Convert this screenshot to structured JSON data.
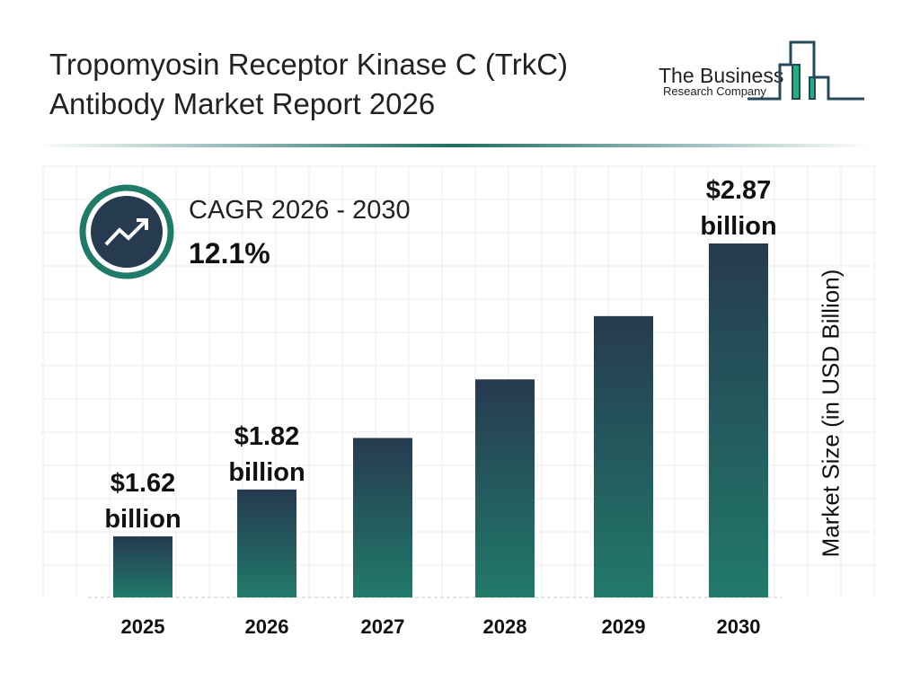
{
  "header": {
    "title_line1": "Tropomyosin Receptor Kinase C (TrkC)",
    "title_line2": "Antibody Market Report 2026"
  },
  "logo": {
    "line1": "The Business",
    "line2": "Research Company"
  },
  "cagr": {
    "label": "CAGR 2026 - 2030",
    "value": "12.1%",
    "icon": "trending-up-icon"
  },
  "colors": {
    "bar_top": "#263a50",
    "bar_bottom": "#217a6a",
    "accent": "#1f7a68"
  },
  "chart_data": {
    "type": "bar",
    "categories": [
      "2025",
      "2026",
      "2027",
      "2028",
      "2029",
      "2030"
    ],
    "values": [
      1.62,
      1.82,
      2.04,
      2.29,
      2.56,
      2.87
    ],
    "data_labels": [
      "$1.62 billion",
      "$1.82 billion",
      "",
      "",
      "",
      "$2.87 billion"
    ],
    "ylabel": "Market Size (in USD Billion)",
    "xlabel": "",
    "grid": true
  }
}
